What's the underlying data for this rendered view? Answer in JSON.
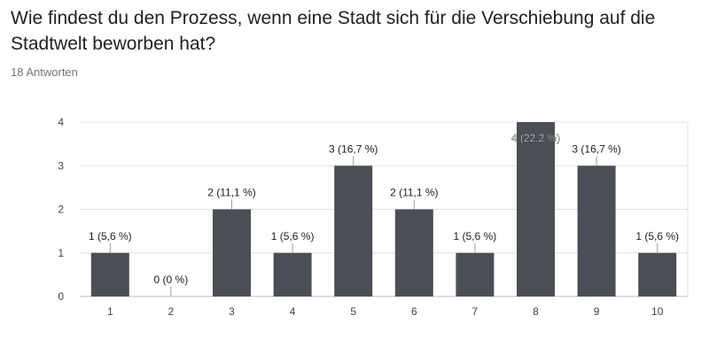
{
  "question": {
    "title": "Wie findest du den Prozess, wenn eine Stadt sich für die Verschiebung auf die Stadtwelt beworben hat?"
  },
  "responses": {
    "count_text": "18 Antworten"
  },
  "colors": {
    "bar": "#4a4f57",
    "grid": "#e0e0e0",
    "axis": "#bdbdbd",
    "label": "#202124",
    "tick": "#444444"
  },
  "chart_data": {
    "type": "bar",
    "categories": [
      "1",
      "2",
      "3",
      "4",
      "5",
      "6",
      "7",
      "8",
      "9",
      "10"
    ],
    "values": [
      1,
      0,
      2,
      1,
      3,
      2,
      1,
      4,
      3,
      1
    ],
    "data_labels": [
      "1 (5,6 %)",
      "0 (0 %)",
      "2 (11,1 %)",
      "1 (5,6 %)",
      "3 (16,7 %)",
      "2 (11,1 %)",
      "1 (5,6 %)",
      "4 (22,2 %)",
      "3 (16,7 %)",
      "1 (5,6 %)"
    ],
    "y_ticks": [
      "0",
      "1",
      "2",
      "3",
      "4"
    ],
    "ylim": [
      0,
      4
    ],
    "grid": true,
    "legend": "none"
  }
}
